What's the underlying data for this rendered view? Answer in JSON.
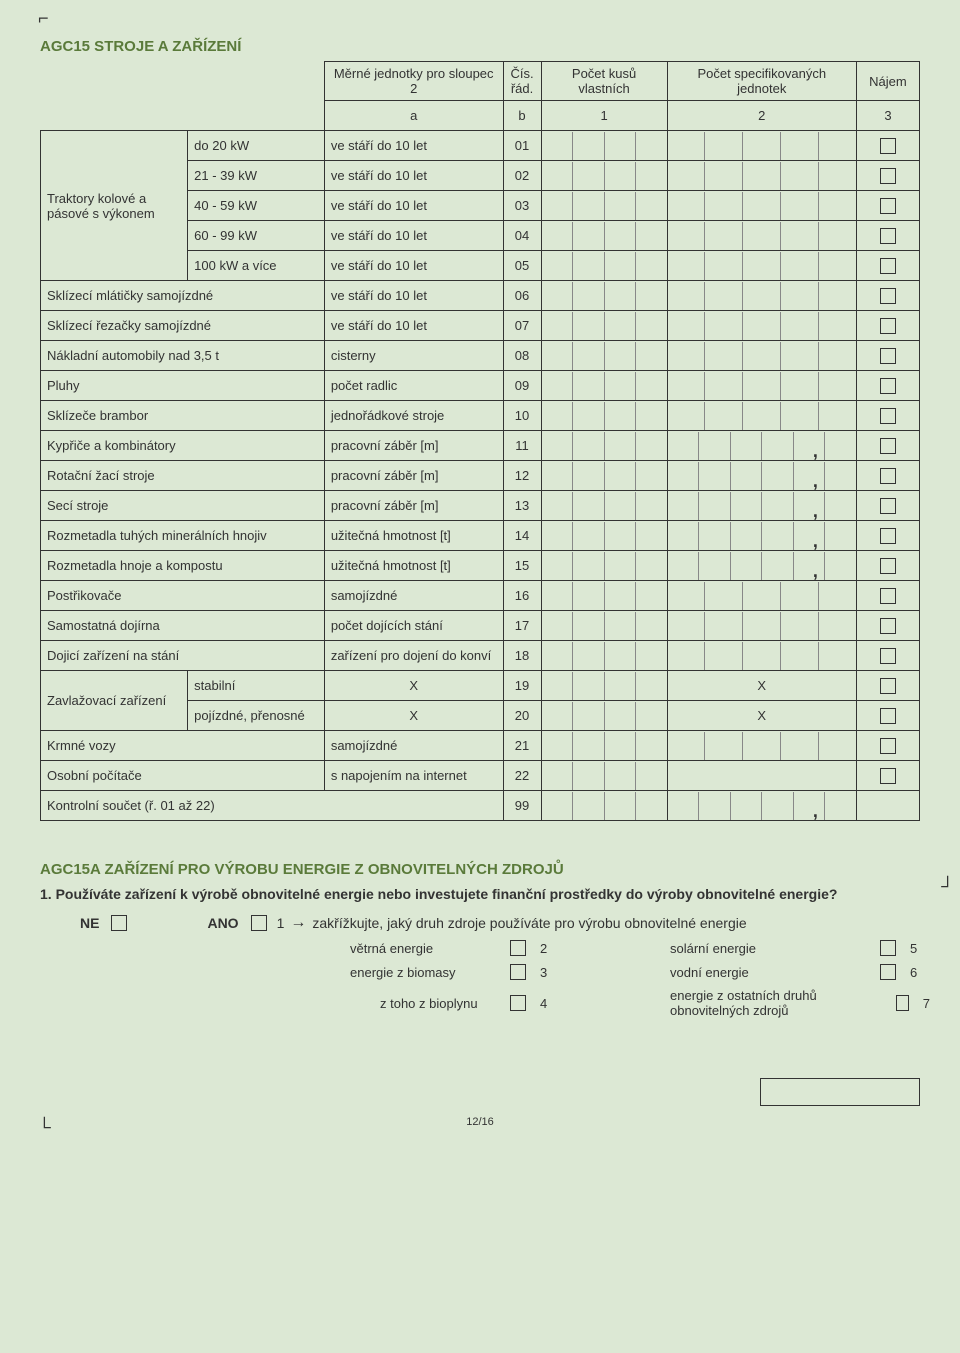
{
  "title_agc15": "AGC15 STROJE A ZAŘÍZENÍ",
  "headers": {
    "unit_col": "Měrné jednotky pro sloupec 2",
    "cis": "Čís. řád.",
    "count": "Počet kusů vlastních",
    "spec": "Počet specifikovaných jednotek",
    "najem": "Nájem",
    "a": "a",
    "b": "b",
    "c1": "1",
    "c2": "2",
    "c3": "3"
  },
  "traktory_label": "Traktory kolové a pásové s výkonem",
  "rows": [
    {
      "g": "t",
      "d1": "",
      "d2": "do 20 kW",
      "unit": "ve stáří do 10 let",
      "cis": "01",
      "ticks1": 4,
      "ticks2": 5,
      "comma": false,
      "chk": true
    },
    {
      "g": "t",
      "d1": "",
      "d2": "21 - 39 kW",
      "unit": "ve stáří do 10 let",
      "cis": "02",
      "ticks1": 4,
      "ticks2": 5,
      "comma": false,
      "chk": true
    },
    {
      "g": "t",
      "d1": "",
      "d2": "40 - 59 kW",
      "unit": "ve stáří do 10 let",
      "cis": "03",
      "ticks1": 4,
      "ticks2": 5,
      "comma": false,
      "chk": true
    },
    {
      "g": "t",
      "d1": "",
      "d2": "60 - 99 kW",
      "unit": "ve stáří do 10 let",
      "cis": "04",
      "ticks1": 4,
      "ticks2": 5,
      "comma": false,
      "chk": true
    },
    {
      "g": "t",
      "d1": "",
      "d2": "100 kW a více",
      "unit": "ve stáří do 10 let",
      "cis": "05",
      "ticks1": 4,
      "ticks2": 5,
      "comma": false,
      "chk": true
    },
    {
      "d1": "Sklízecí mlátičky samojízdné",
      "unit": "ve stáří do 10 let",
      "cis": "06",
      "ticks1": 4,
      "ticks2": 5,
      "comma": false,
      "chk": true
    },
    {
      "d1": "Sklízecí řezačky samojízdné",
      "unit": "ve stáří do 10 let",
      "cis": "07",
      "ticks1": 4,
      "ticks2": 5,
      "comma": false,
      "chk": true
    },
    {
      "d1": "Nákladní automobily nad 3,5 t",
      "unit": "cisterny",
      "cis": "08",
      "ticks1": 4,
      "ticks2": 5,
      "comma": false,
      "chk": true
    },
    {
      "d1": "Pluhy",
      "unit": "počet radlic",
      "cis": "09",
      "ticks1": 4,
      "ticks2": 5,
      "comma": false,
      "chk": true
    },
    {
      "d1": "Sklízeče brambor",
      "unit": "jednořádkové stroje",
      "cis": "10",
      "ticks1": 4,
      "ticks2": 5,
      "comma": false,
      "chk": true
    },
    {
      "d1": "Kypřiče a kombinátory",
      "unit": "pracovní záběr [m]",
      "cis": "11",
      "ticks1": 4,
      "ticks2": 6,
      "comma": true,
      "chk": true
    },
    {
      "d1": "Rotační žací stroje",
      "unit": "pracovní záběr [m]",
      "cis": "12",
      "ticks1": 4,
      "ticks2": 6,
      "comma": true,
      "chk": true
    },
    {
      "d1": "Secí stroje",
      "unit": "pracovní záběr [m]",
      "cis": "13",
      "ticks1": 4,
      "ticks2": 6,
      "comma": true,
      "chk": true
    },
    {
      "d1": "Rozmetadla tuhých minerálních hnojiv",
      "unit": "užitečná hmotnost [t]",
      "cis": "14",
      "ticks1": 4,
      "ticks2": 6,
      "comma": true,
      "chk": true
    },
    {
      "d1": "Rozmetadla hnoje a kompostu",
      "unit": "užitečná hmotnost [t]",
      "cis": "15",
      "ticks1": 4,
      "ticks2": 6,
      "comma": true,
      "chk": true
    },
    {
      "d1": "Postřikovače",
      "unit": "samojízdné",
      "cis": "16",
      "ticks1": 4,
      "ticks2": 5,
      "comma": false,
      "chk": true
    },
    {
      "d1": "Samostatná dojírna",
      "unit": "počet dojících stání",
      "cis": "17",
      "ticks1": 4,
      "ticks2": 5,
      "comma": false,
      "chk": true
    },
    {
      "d1": "Dojicí zařízení na stání",
      "unit": "zařízení pro dojení do konví",
      "cis": "18",
      "ticks1": 4,
      "ticks2": 5,
      "comma": false,
      "chk": true
    },
    {
      "g": "z",
      "d1": "Zavlažovací zařízení",
      "d2": "stabilní",
      "unit": "X",
      "cis": "19",
      "ticks1": 4,
      "spec_x": true,
      "chk": true
    },
    {
      "g": "z",
      "d1": "",
      "d2": "pojízdné, přenosné",
      "unit": "X",
      "cis": "20",
      "ticks1": 4,
      "spec_x": true,
      "chk": true
    },
    {
      "d1": "Krmné vozy",
      "unit": "samojízdné",
      "cis": "21",
      "ticks1": 4,
      "ticks2": 5,
      "comma": false,
      "chk": true
    },
    {
      "d1": "Osobní počítače",
      "unit": "s napojením na internet",
      "cis": "22",
      "ticks1": 4,
      "ticks2": 0,
      "comma": false,
      "chk": true
    },
    {
      "d1": "Kontrolní součet (ř. 01 až 22)",
      "unit": "",
      "cis": "99",
      "ticks1": 4,
      "ticks2": 6,
      "comma": true,
      "chk": false,
      "sum": true
    }
  ],
  "title_agc15a": "AGC15A ZAŘÍZENÍ PRO VÝROBU ENERGIE Z OBNOVITELNÝCH ZDROJŮ",
  "question1": "1. Používáte zařízení k výrobě obnovitelné energie nebo investujete finanční prostředky do výroby obnovitelné energie?",
  "ne": "NE",
  "ano": "ANO",
  "ano_num": "1",
  "arrow_hint": "zakřížkujte, jaký druh zdroje používáte pro výrobu obnovitelné energie",
  "opts": [
    {
      "l": "větrná energie",
      "n": "2"
    },
    {
      "l": "energie z biomasy",
      "n": "3"
    },
    {
      "l": "z toho z bioplynu",
      "n": "4",
      "indent": true
    },
    {
      "l": "solární energie",
      "n": "5"
    },
    {
      "l": "vodní energie",
      "n": "6"
    },
    {
      "l": "energie z ostatních druhů obnovitelných zdrojů",
      "n": "7"
    }
  ],
  "pager": "12/16"
}
